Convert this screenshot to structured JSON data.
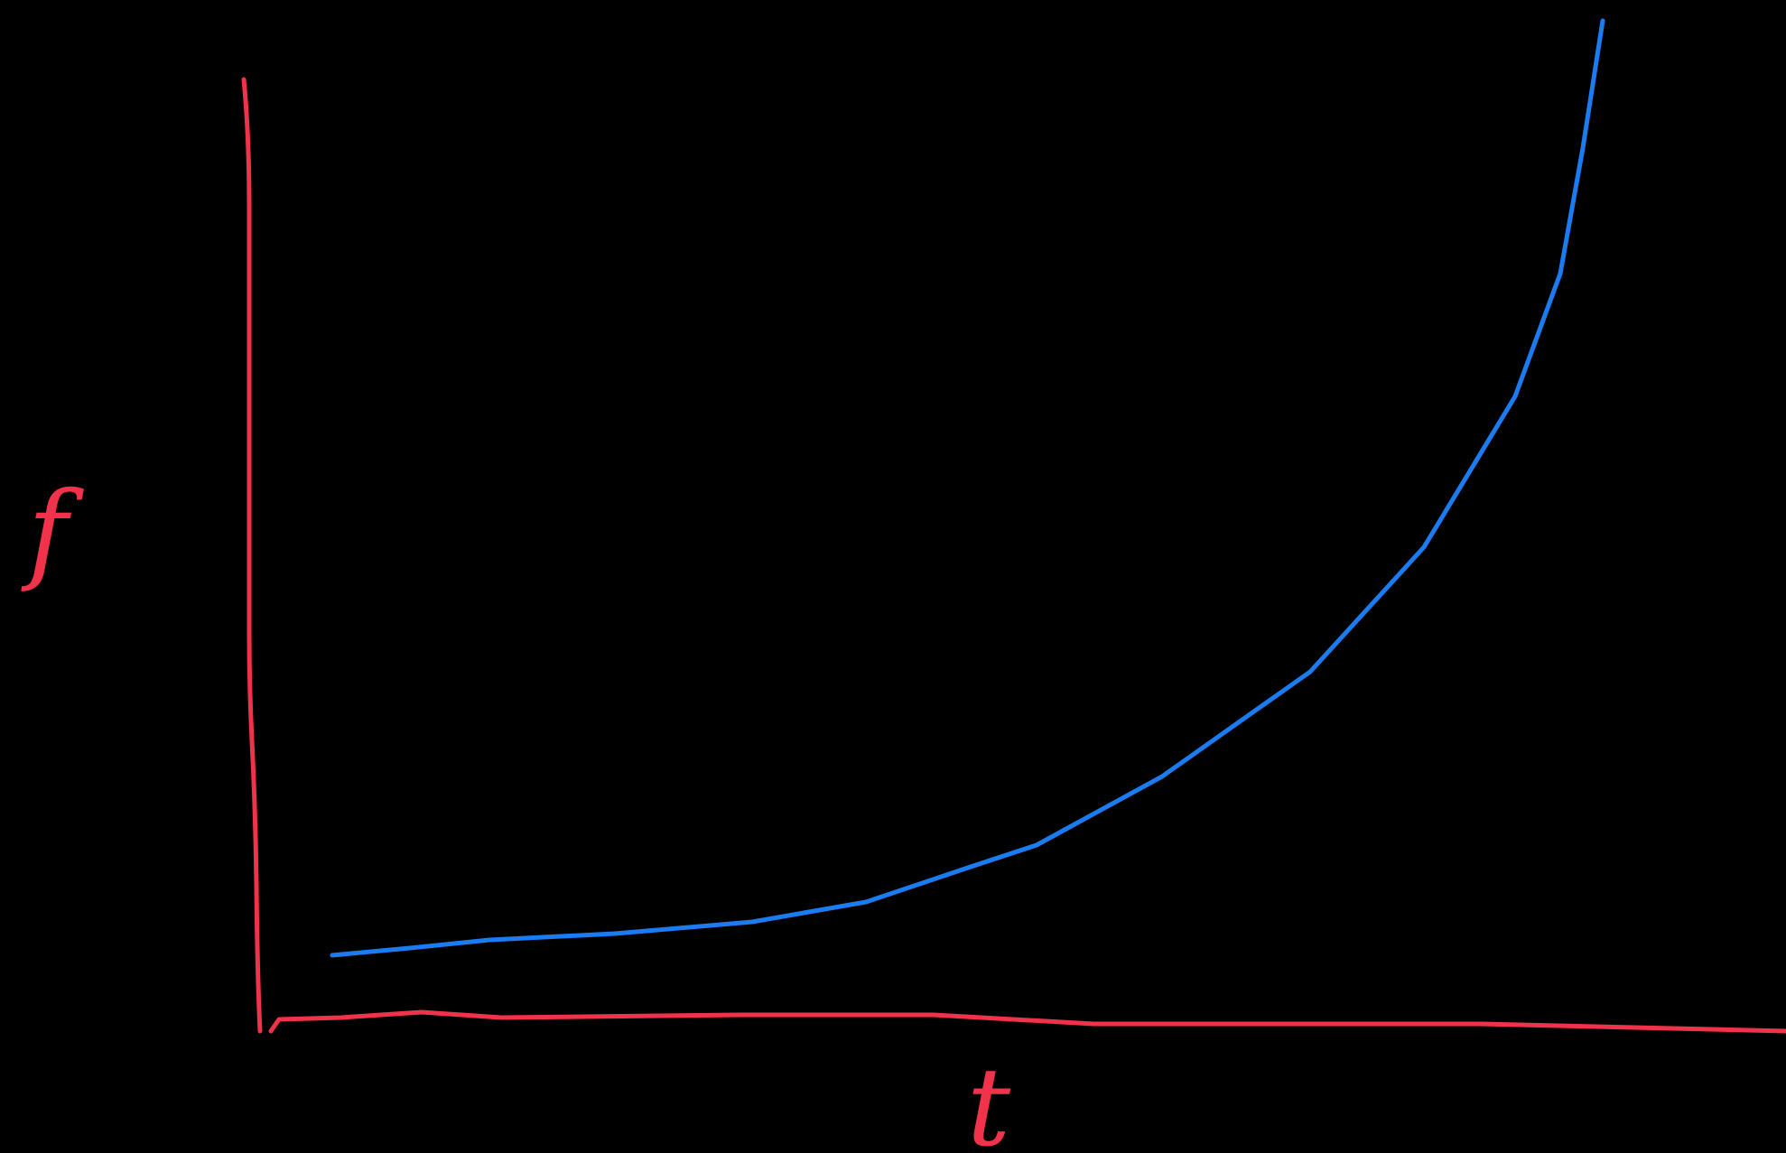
{
  "axes": {
    "y_label": "f",
    "x_label": "t"
  }
}
